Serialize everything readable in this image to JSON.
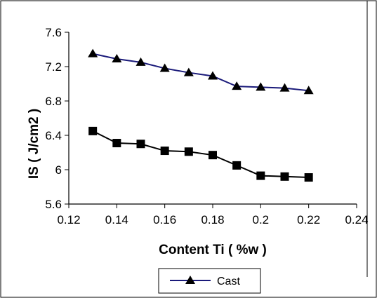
{
  "chart_data": {
    "type": "line",
    "title": "",
    "xlabel": "Content Ti ( %w )",
    "ylabel": "IS ( J/cm2 )",
    "xlim": [
      0.12,
      0.24
    ],
    "ylim": [
      5.6,
      7.6
    ],
    "xticks": [
      "0.12",
      "0.14",
      "0.16",
      "0.18",
      "0.2",
      "0.22",
      "0.24"
    ],
    "yticks": [
      "5.6",
      "6",
      "6.4",
      "6.8",
      "7.2",
      "7.6"
    ],
    "grid": false,
    "legend_position": "bottom",
    "series": [
      {
        "name": "",
        "marker": "square",
        "color": "#000000",
        "x": [
          0.13,
          0.14,
          0.15,
          0.16,
          0.17,
          0.18,
          0.19,
          0.2,
          0.21,
          0.22
        ],
        "y": [
          6.45,
          6.31,
          6.3,
          6.22,
          6.21,
          6.17,
          6.05,
          5.93,
          5.92,
          5.91
        ]
      },
      {
        "name": "Cast",
        "marker": "triangle",
        "color": "#1a1a7a",
        "x": [
          0.13,
          0.14,
          0.15,
          0.16,
          0.17,
          0.18,
          0.19,
          0.2,
          0.21,
          0.22
        ],
        "y": [
          7.35,
          7.29,
          7.25,
          7.18,
          7.13,
          7.09,
          6.97,
          6.96,
          6.95,
          6.92
        ]
      }
    ]
  }
}
